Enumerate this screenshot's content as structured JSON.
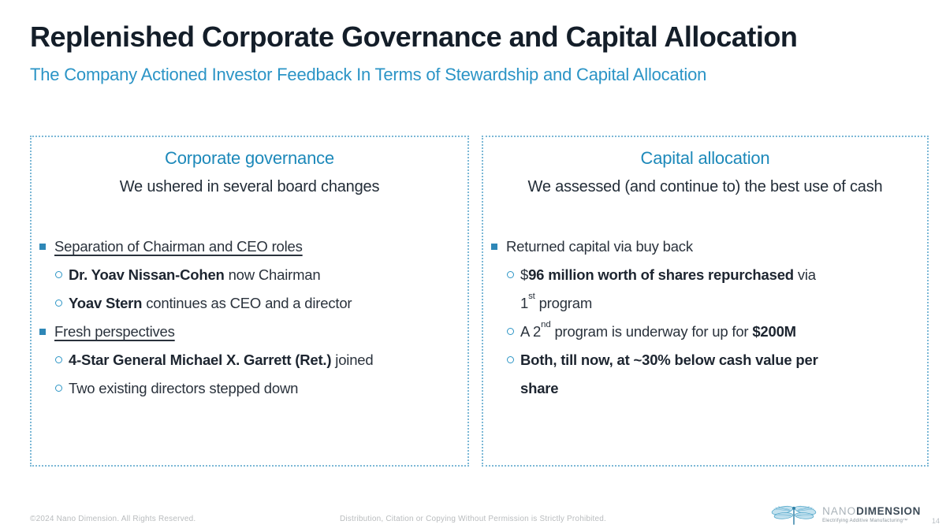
{
  "slide": {
    "title": "Replenished Corporate Governance and Capital Allocation",
    "subtitle": "The Company Actioned Investor Feedback In Terms of Stewardship and Capital Allocation"
  },
  "colors": {
    "title_navy": "#141e29",
    "accent_teal": "#2b94c6",
    "box_border_blue": "#7cb8d6",
    "body_text": "#2a323c",
    "footer_gray": "#b9bcbe"
  },
  "left_box": {
    "heading": "Corporate governance",
    "subheading": [
      {
        "t": "We "
      },
      {
        "t": "ushered in several board changes",
        "b": true
      }
    ],
    "items": [
      {
        "level": 1,
        "segments": [
          {
            "t": "Separation of Chairman and CEO roles",
            "u": true
          }
        ]
      },
      {
        "level": 2,
        "segments": [
          {
            "t": "Dr. Yoav Nissan-Cohen",
            "b": true
          },
          {
            "t": " now Chairman"
          }
        ]
      },
      {
        "level": 2,
        "segments": [
          {
            "t": "Yoav Stern",
            "b": true
          },
          {
            "t": " continues as CEO and a director"
          }
        ]
      },
      {
        "level": 1,
        "segments": [
          {
            "t": "Fresh perspectives",
            "u": true
          }
        ]
      },
      {
        "level": 2,
        "segments": [
          {
            "t": "4-Star General Michael X. Garrett (Ret.)",
            "b": true
          },
          {
            "t": " joined"
          }
        ]
      },
      {
        "level": 2,
        "segments": [
          {
            "t": "Two existing directors stepped down"
          }
        ]
      }
    ]
  },
  "right_box": {
    "heading": "Capital allocation",
    "subheading": [
      {
        "t": "We "
      },
      {
        "t": "assessed (and continue to)",
        "b": true
      },
      {
        "t": " the best use of cash"
      }
    ],
    "items": [
      {
        "level": 1,
        "segments": [
          {
            "t": "Returned capital via buy back"
          }
        ]
      },
      {
        "level": 2,
        "segments": [
          {
            "t": "$"
          },
          {
            "t": "96 million worth of shares repurchased",
            "b": true
          },
          {
            "t": " via"
          },
          {
            "br": true
          },
          {
            "t": "1"
          },
          {
            "t": "st",
            "sup": true
          },
          {
            "t": " program"
          }
        ]
      },
      {
        "level": 2,
        "segments": [
          {
            "t": "A 2"
          },
          {
            "t": "nd",
            "sup": true
          },
          {
            "t": " program is underway for up for "
          },
          {
            "t": "$200M",
            "b": true
          }
        ]
      },
      {
        "level": 2,
        "segments": [
          {
            "t": "Both, till now, at ~30% below cash value per",
            "b": true
          },
          {
            "br": true
          },
          {
            "t": "share",
            "b": true
          }
        ]
      }
    ]
  },
  "footer": {
    "copyright": "©2024 Nano Dimension. All Rights Reserved.",
    "distribution": "Distribution, Citation or Copying Without Permission is Strictly Prohibited.",
    "logo_nano": "NANO",
    "logo_dimension": "DIMENSION",
    "logo_tagline": "Electrifying Additive Manufacturing™",
    "page_number": "14"
  }
}
